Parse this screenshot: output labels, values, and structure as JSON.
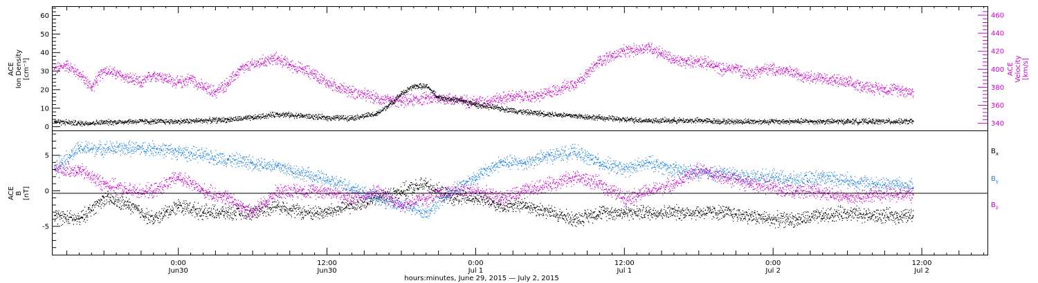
{
  "chart_data": [
    {
      "type": "scatter",
      "panel": "top",
      "xlabel": "hours:minutes, June 29, 2015 — July  2, 2015",
      "x_ticks": [
        {
          "hours": 24,
          "time": "0:00",
          "date": "Jun30"
        },
        {
          "hours": 36,
          "time": "12:00",
          "date": "Jun30"
        },
        {
          "hours": 48,
          "time": "0:00",
          "date": "Jul 1"
        },
        {
          "hours": 60,
          "time": "12:00",
          "date": "Jul 1"
        },
        {
          "hours": 72,
          "time": "0:00",
          "date": "Jul 2"
        },
        {
          "hours": 84,
          "time": "12:00",
          "date": "Jul 2"
        }
      ],
      "xlim_hours_since_jun29": [
        13.8,
        89.3
      ],
      "left_axis": {
        "label_lines": [
          "ACE",
          "Ion Density",
          "[cm⁻³]"
        ],
        "ylim": [
          -2,
          65
        ],
        "ticks": [
          "0",
          "10",
          "20",
          "30",
          "40",
          "50",
          "60"
        ],
        "color": "#000000"
      },
      "right_axis": {
        "label_lines": [
          "ACE",
          "Velocity",
          "[km/s]"
        ],
        "ylim": [
          332,
          470
        ],
        "ticks": [
          "340",
          "360",
          "380",
          "400",
          "420",
          "440",
          "460"
        ],
        "color": "#cc00cc"
      },
      "series": [
        {
          "color": "#000000",
          "axis": "left",
          "x": [
            14,
            16,
            18,
            20,
            22,
            24,
            26,
            28,
            30,
            32,
            34,
            36,
            38,
            40,
            41,
            42,
            43,
            44,
            45,
            46,
            47,
            48,
            50,
            52,
            54,
            56,
            58,
            60,
            62,
            64,
            66,
            68,
            70,
            72,
            74,
            76,
            78,
            80,
            82,
            83.3
          ],
          "y": [
            3,
            2,
            2.5,
            3,
            3,
            3,
            3.5,
            4,
            5,
            7,
            6,
            5,
            5,
            7,
            12,
            18,
            22,
            22,
            16,
            15,
            14,
            12,
            10,
            8,
            7,
            6,
            5,
            4,
            3.5,
            3.5,
            3.5,
            3,
            3,
            3,
            3,
            3,
            3,
            3,
            3,
            3
          ]
        },
        {
          "color": "#cc00cc",
          "axis": "right",
          "x": [
            14,
            15,
            16,
            17,
            18,
            19,
            20,
            21,
            22,
            23,
            24,
            25,
            26,
            27,
            28,
            29,
            30,
            31,
            32,
            33,
            34,
            35,
            36,
            37,
            38,
            39,
            40,
            41,
            42,
            43,
            44,
            45,
            46,
            47,
            48,
            49,
            50,
            51,
            52,
            53,
            54,
            55,
            56,
            57,
            58,
            59,
            60,
            61,
            62,
            63,
            64,
            65,
            66,
            67,
            68,
            69,
            70,
            71,
            72,
            73,
            74,
            75,
            76,
            77,
            78,
            79,
            80,
            81,
            82,
            83.3
          ],
          "y": [
            400,
            405,
            395,
            380,
            400,
            395,
            390,
            385,
            395,
            390,
            385,
            390,
            380,
            375,
            385,
            400,
            405,
            410,
            412,
            405,
            400,
            395,
            385,
            380,
            375,
            372,
            368,
            365,
            365,
            366,
            368,
            368,
            367,
            365,
            364,
            365,
            368,
            370,
            370,
            370,
            375,
            380,
            385,
            395,
            410,
            415,
            420,
            422,
            425,
            418,
            410,
            408,
            410,
            405,
            400,
            402,
            395,
            400,
            400,
            398,
            395,
            392,
            390,
            388,
            385,
            382,
            380,
            378,
            378,
            375
          ]
        }
      ]
    },
    {
      "type": "scatter",
      "panel": "bottom",
      "left_axis": {
        "label_lines": [
          "ACE",
          "B",
          "[nT]"
        ],
        "ylim": [
          -9,
          8.5
        ],
        "ticks": [
          "5",
          "0",
          "-5"
        ]
      },
      "series": [
        {
          "name": "Bx",
          "legend_main": "B",
          "legend_sub": "x",
          "color": "#000000",
          "x": [
            14,
            16,
            18,
            20,
            22,
            24,
            26,
            28,
            30,
            32,
            34,
            36,
            38,
            40,
            42,
            44,
            46,
            48,
            50,
            52,
            54,
            56,
            58,
            60,
            62,
            64,
            66,
            68,
            70,
            72,
            74,
            76,
            78,
            80,
            82,
            83.3
          ],
          "y": [
            -3.5,
            -4,
            -1,
            -2,
            -4,
            -2,
            -3,
            -3,
            -3,
            -2,
            -3,
            -3,
            -2,
            -1,
            0,
            1,
            -1,
            -1,
            -2,
            -2,
            -3,
            -4,
            -3,
            -3,
            -3,
            -3,
            -3,
            -3,
            -3.5,
            -4,
            -4,
            -3.5,
            -3,
            -3.5,
            -3.5,
            -3.5
          ]
        },
        {
          "name": "By",
          "legend_main": "B",
          "legend_sub": "y",
          "color": "#1f85de",
          "x": [
            14,
            16,
            18,
            20,
            22,
            24,
            26,
            28,
            30,
            32,
            34,
            36,
            38,
            40,
            42,
            44,
            46,
            48,
            50,
            52,
            54,
            56,
            58,
            60,
            62,
            64,
            66,
            68,
            70,
            72,
            74,
            76,
            78,
            80,
            82,
            83.3
          ],
          "y": [
            3.5,
            6,
            6,
            6,
            6,
            5.5,
            5,
            4.5,
            4,
            3.5,
            2.5,
            1.5,
            0.5,
            -1,
            -2,
            -3,
            0,
            2,
            4,
            4,
            5,
            5.5,
            4,
            3,
            4,
            3,
            2.5,
            2.5,
            2,
            2,
            1.5,
            2,
            1.5,
            1,
            1,
            0.5
          ]
        },
        {
          "name": "Bz",
          "legend_main": "B",
          "legend_sub": "z",
          "color": "#cc00cc",
          "x": [
            14,
            16,
            18,
            20,
            22,
            24,
            26,
            28,
            30,
            32,
            34,
            36,
            38,
            40,
            42,
            44,
            46,
            48,
            50,
            52,
            54,
            56,
            58,
            60,
            62,
            64,
            66,
            68,
            70,
            72,
            74,
            76,
            78,
            80,
            82,
            83.3
          ],
          "y": [
            3,
            3,
            1,
            0,
            0,
            2,
            0,
            -1,
            -3,
            0,
            0,
            0,
            -1,
            0,
            -2,
            -1,
            0,
            0,
            -1,
            0,
            1,
            2,
            1,
            -1,
            0,
            1,
            3,
            2,
            1,
            0.5,
            0,
            0,
            -1,
            -0.5,
            -0.5,
            -0.5
          ]
        }
      ]
    }
  ]
}
